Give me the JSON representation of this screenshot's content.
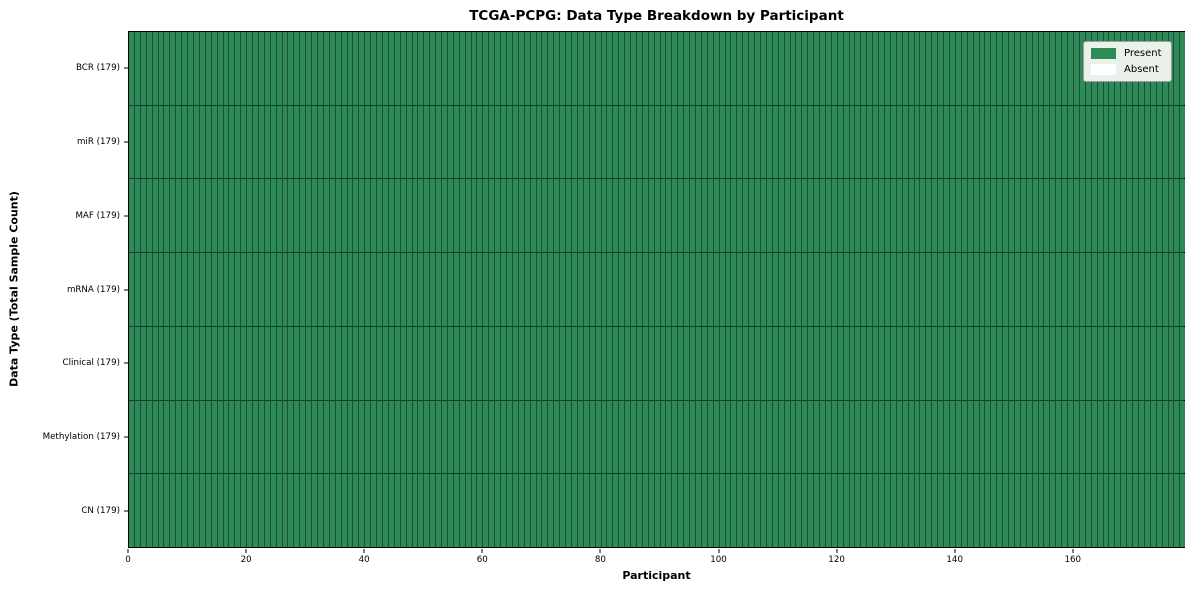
{
  "chart_data": {
    "type": "heatmap",
    "title": "TCGA-PCPG: Data Type Breakdown by Participant",
    "xlabel": "Participant",
    "ylabel": "Data Type (Total Sample Count)",
    "x_ticks": [
      0,
      20,
      40,
      60,
      80,
      100,
      120,
      140,
      160
    ],
    "xlim": [
      0,
      179
    ],
    "n_participants": 179,
    "n_rows": 7,
    "grid": false,
    "rows": [
      {
        "label": "BCR (179)",
        "data_type": "BCR",
        "total_samples": 179,
        "present_count": 179,
        "absent_count": 0
      },
      {
        "label": "miR (179)",
        "data_type": "miR",
        "total_samples": 179,
        "present_count": 179,
        "absent_count": 0
      },
      {
        "label": "MAF (179)",
        "data_type": "MAF",
        "total_samples": 179,
        "present_count": 179,
        "absent_count": 0
      },
      {
        "label": "mRNA (179)",
        "data_type": "mRNA",
        "total_samples": 179,
        "present_count": 179,
        "absent_count": 0
      },
      {
        "label": "Clinical (179)",
        "data_type": "Clinical",
        "total_samples": 179,
        "present_count": 179,
        "absent_count": 0
      },
      {
        "label": "Methylation (179)",
        "data_type": "Methylation",
        "total_samples": 179,
        "present_count": 179,
        "absent_count": 0
      },
      {
        "label": "CN (179)",
        "data_type": "CN",
        "total_samples": 179,
        "present_count": 179,
        "absent_count": 0
      }
    ],
    "legend": {
      "position": "upper right",
      "entries": [
        {
          "label": "Present",
          "color": "#2e8b57"
        },
        {
          "label": "Absent",
          "color": "#ffffff"
        }
      ]
    },
    "colors": {
      "present": "#2e8b57",
      "absent": "#ffffff",
      "cell_border": "#1e4f36",
      "row_border": "#16402b",
      "axis": "#000000",
      "legend_bg": "#e9f1ea",
      "legend_border": "#9e9e9e",
      "text": "#000000"
    }
  }
}
